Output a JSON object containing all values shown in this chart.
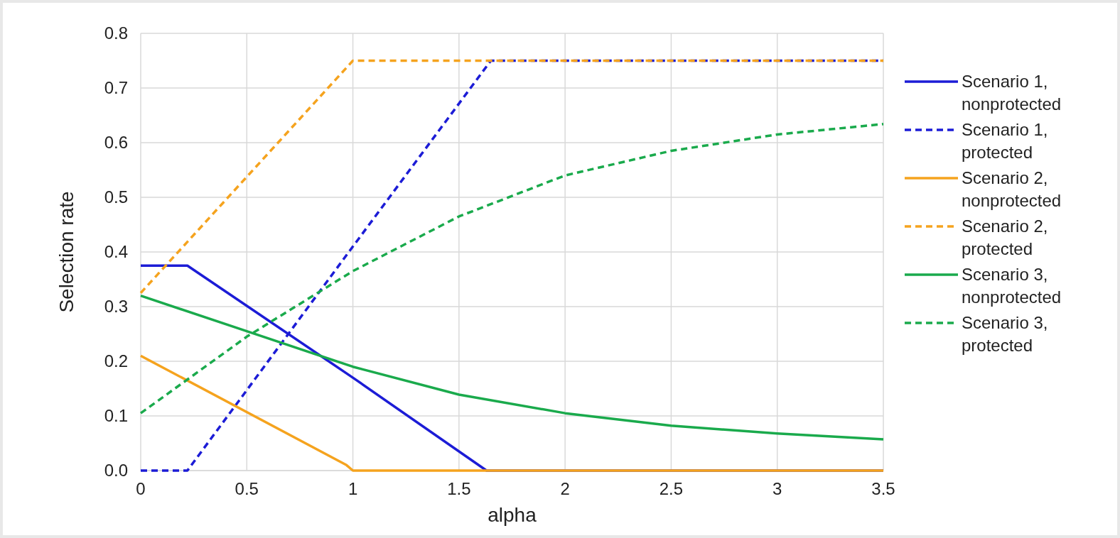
{
  "chart_data": {
    "type": "line",
    "xlabel": "alpha",
    "ylabel": "Selection rate",
    "xlim": [
      0,
      3.5
    ],
    "xticks": [
      0,
      0.5,
      1,
      1.5,
      2,
      2.5,
      3,
      3.5
    ],
    "ylim": [
      0,
      0.8
    ],
    "yticks": [
      {
        "value": 0,
        "label": "0.0"
      },
      0.1,
      0.2,
      0.3,
      0.4,
      0.5,
      0.6,
      0.7,
      0.8
    ],
    "grid": true,
    "legend": "right",
    "marker": "none",
    "series": [
      {
        "name": "Scenario 1, nonprotected",
        "color": "#1c1cd6",
        "line_style": "solid",
        "x": [
          0,
          0.22,
          1,
          1.63,
          3.5
        ],
        "values": [
          0.375,
          0.375,
          0.17,
          0,
          0
        ]
      },
      {
        "name": "Scenario 1, protected",
        "color": "#1c1cd6",
        "line_style": "dashed",
        "x": [
          0,
          0.22,
          1,
          1.65,
          3.5
        ],
        "values": [
          0,
          0,
          0.41,
          0.75,
          0.75
        ]
      },
      {
        "name": "Scenario 2, nonprotected",
        "color": "#f5a31e",
        "line_style": "solid",
        "x": [
          0,
          0.97,
          1,
          3.5
        ],
        "values": [
          0.21,
          0.01,
          0,
          0
        ]
      },
      {
        "name": "Scenario 2, protected",
        "color": "#f5a31e",
        "line_style": "dashed",
        "x": [
          0,
          1,
          3.5
        ],
        "values": [
          0.325,
          0.75,
          0.75
        ]
      },
      {
        "name": "Scenario 3, nonprotected",
        "color": "#1aaa4c",
        "line_style": "solid",
        "x": [
          0,
          0.5,
          1,
          1.5,
          2,
          2.5,
          3,
          3.5
        ],
        "values": [
          0.32,
          0.255,
          0.19,
          0.139,
          0.105,
          0.082,
          0.068,
          0.057
        ]
      },
      {
        "name": "Scenario 3, protected",
        "color": "#1aaa4c",
        "line_style": "dashed",
        "x": [
          0,
          0.5,
          1,
          1.5,
          2,
          2.5,
          3,
          3.5
        ],
        "values": [
          0.105,
          0.245,
          0.365,
          0.465,
          0.54,
          0.585,
          0.615,
          0.634
        ]
      }
    ]
  }
}
